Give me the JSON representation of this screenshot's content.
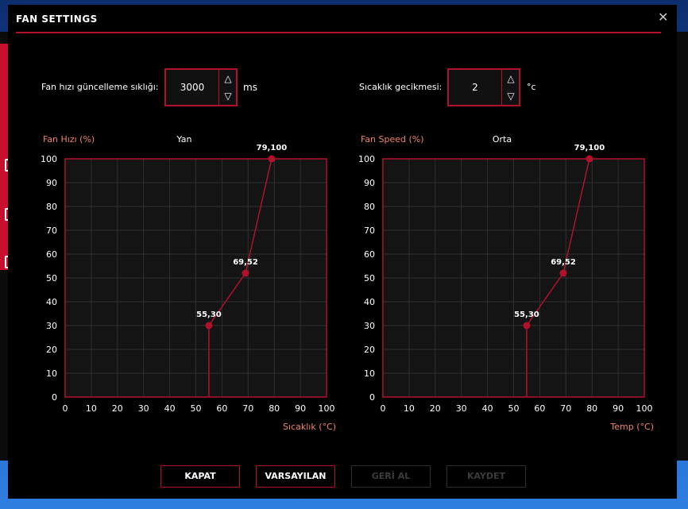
{
  "window": {
    "title": "FAN SETTINGS"
  },
  "settings": {
    "update_label": "Fan hızı güncelleme sıklığı:",
    "update_value": "3000",
    "update_unit": "ms",
    "delay_label": "Sıcaklık gecikmesi:",
    "delay_value": "2",
    "delay_unit": "°c",
    "up_arrow": "△",
    "down_arrow": "▽"
  },
  "buttons": {
    "close": "KAPAT",
    "default": "VARSAYILAN",
    "undo": "GERİ AL",
    "save": "KAYDET"
  },
  "colors": {
    "accent": "#b0122c",
    "label_orange": "#f0836a",
    "background": "#000000",
    "plot_bg": "#141414",
    "grid": "#2f2f2f"
  },
  "chart_data": [
    {
      "type": "line",
      "title": "Yan",
      "ylabel": "Fan Hızı (%)",
      "xlabel": "Sıcaklık (°C)",
      "xlim": [
        0,
        100
      ],
      "ylim": [
        0,
        100
      ],
      "xticks": [
        0,
        10,
        20,
        30,
        40,
        50,
        60,
        70,
        80,
        90,
        100
      ],
      "yticks": [
        0,
        10,
        20,
        30,
        40,
        50,
        60,
        70,
        80,
        90,
        100
      ],
      "grid": true,
      "points": [
        {
          "x": 55,
          "y": 0
        },
        {
          "x": 55,
          "y": 30
        },
        {
          "x": 69,
          "y": 52
        },
        {
          "x": 79,
          "y": 100
        }
      ],
      "point_labels": [
        "55,30",
        "69,52",
        "79,100"
      ]
    },
    {
      "type": "line",
      "title": "Orta",
      "ylabel": "Fan Speed (%)",
      "xlabel": "Temp (°C)",
      "xlim": [
        0,
        100
      ],
      "ylim": [
        0,
        100
      ],
      "xticks": [
        0,
        10,
        20,
        30,
        40,
        50,
        60,
        70,
        80,
        90,
        100
      ],
      "yticks": [
        0,
        10,
        20,
        30,
        40,
        50,
        60,
        70,
        80,
        90,
        100
      ],
      "grid": true,
      "points": [
        {
          "x": 55,
          "y": 0
        },
        {
          "x": 55,
          "y": 30
        },
        {
          "x": 69,
          "y": 52
        },
        {
          "x": 79,
          "y": 100
        }
      ],
      "point_labels": [
        "55,30",
        "69,52",
        "79,100"
      ]
    }
  ]
}
